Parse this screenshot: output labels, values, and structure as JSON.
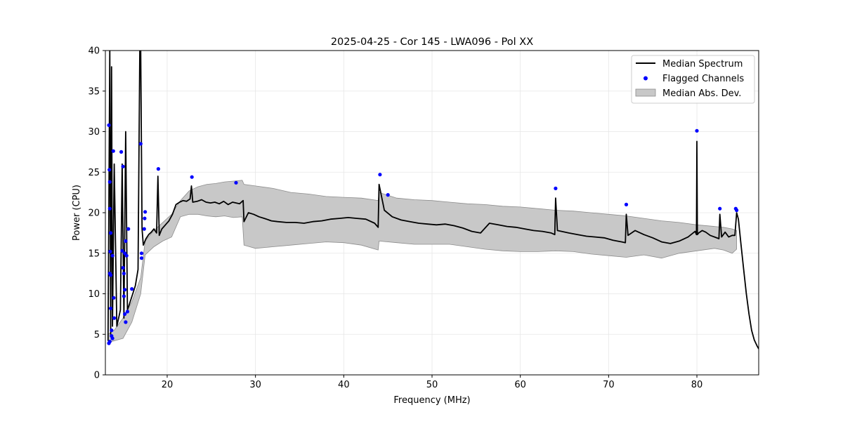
{
  "chart_data": {
    "type": "line",
    "title": "2025-04-25 - Cor 145 - LWA096 - Pol XX",
    "xlabel": "Frequency (MHz)",
    "ylabel": "Power (CPU)",
    "xlim": [
      13.0,
      87.0
    ],
    "ylim": [
      0,
      40
    ],
    "xticks": [
      20,
      30,
      40,
      50,
      60,
      70,
      80
    ],
    "yticks": [
      0,
      5,
      10,
      15,
      20,
      25,
      30,
      35,
      40
    ],
    "grid": true,
    "legend_position": "top-right",
    "legend": [
      "Median Spectrum",
      "Flagged Channels",
      "Median Abs. Dev."
    ],
    "colors": {
      "median": "#000000",
      "flagged": "#0000ff",
      "mad_fill": "#c8c8c8",
      "mad_edge": "#8c8c8c"
    },
    "series": [
      {
        "name": "Median Spectrum",
        "x": [
          13.3,
          13.5,
          13.6,
          13.7,
          13.8,
          14.0,
          14.3,
          14.7,
          14.9,
          15.1,
          15.3,
          15.5,
          15.8,
          16.1,
          16.4,
          16.7,
          16.9,
          17.0,
          17.15,
          17.3,
          17.6,
          17.9,
          18.2,
          18.5,
          18.8,
          18.95,
          19.1,
          19.4,
          19.8,
          20.2,
          20.6,
          21.0,
          21.4,
          21.8,
          22.2,
          22.6,
          22.75,
          22.9,
          23.4,
          23.9,
          24.4,
          24.9,
          25.4,
          25.9,
          26.4,
          26.9,
          27.4,
          27.8,
          28.2,
          28.6,
          28.7,
          29.2,
          29.8,
          30.4,
          31.0,
          31.8,
          32.5,
          33.5,
          34.5,
          35.5,
          36.5,
          37.5,
          38.5,
          39.5,
          40.5,
          41.5,
          42.5,
          43.5,
          43.9,
          44.0,
          44.6,
          45.5,
          46.5,
          47.5,
          48.5,
          49.5,
          50.5,
          51.5,
          52.5,
          53.5,
          54.5,
          55.5,
          56.5,
          57.5,
          58.5,
          59.5,
          60.5,
          61.5,
          62.5,
          63.5,
          63.9,
          64.0,
          64.2,
          65.5,
          66.5,
          67.5,
          68.5,
          69.5,
          70.5,
          71.5,
          71.9,
          72.0,
          72.2,
          73.0,
          74.0,
          75.0,
          76.0,
          77.0,
          78.0,
          79.0,
          79.8,
          79.95,
          80.0,
          80.05,
          80.2,
          80.6,
          81.0,
          81.5,
          82.0,
          82.5,
          82.6,
          82.8,
          83.2,
          83.6,
          84.0,
          84.3,
          84.5,
          84.7,
          85.0,
          85.3,
          85.6,
          85.9,
          86.2,
          86.5,
          86.8,
          87.0
        ],
        "values": [
          4.2,
          40,
          5,
          38,
          6,
          26,
          6,
          8,
          26,
          7,
          30,
          8,
          9,
          10,
          11,
          13,
          40,
          40,
          18,
          16,
          16.8,
          17.3,
          17.6,
          18,
          17.5,
          24.5,
          17.2,
          18,
          18.5,
          19,
          19.8,
          21,
          21.3,
          21.5,
          21.4,
          21.7,
          23.3,
          21.3,
          21.4,
          21.6,
          21.3,
          21.2,
          21.3,
          21.1,
          21.4,
          21,
          21.3,
          21.2,
          21.1,
          21.5,
          18.9,
          20.0,
          19.8,
          19.5,
          19.3,
          19,
          18.9,
          18.8,
          18.8,
          18.7,
          18.9,
          19,
          19.2,
          19.3,
          19.4,
          19.3,
          19.2,
          18.7,
          18.2,
          23.5,
          20.3,
          19.5,
          19.1,
          18.9,
          18.7,
          18.6,
          18.5,
          18.6,
          18.4,
          18.1,
          17.7,
          17.5,
          18.7,
          18.5,
          18.3,
          18.2,
          18.0,
          17.8,
          17.7,
          17.5,
          17.3,
          21.8,
          17.8,
          17.5,
          17.3,
          17.1,
          17.0,
          16.9,
          16.6,
          16.4,
          16.3,
          19.8,
          17.2,
          17.8,
          17.3,
          16.9,
          16.4,
          16.2,
          16.5,
          17.0,
          17.7,
          17.3,
          28.8,
          17.3,
          17.5,
          17.8,
          17.6,
          17.2,
          17.0,
          16.8,
          19.8,
          17.0,
          17.6,
          17.0,
          17.2,
          17.2,
          20.0,
          19.2,
          16.0,
          13.0,
          10.0,
          7.5,
          5.5,
          4.3,
          3.6,
          3.2
        ]
      },
      {
        "name": "Median Abs. Dev.",
        "x": [
          13.3,
          14.0,
          15.0,
          16.0,
          17.0,
          17.5,
          18.5,
          19.5,
          20.5,
          21.5,
          22.5,
          23.5,
          24.5,
          25.5,
          26.5,
          27.5,
          28.5,
          28.7,
          30.0,
          32.0,
          34.0,
          36.0,
          38.0,
          40.0,
          42.0,
          43.9,
          44.0,
          46.0,
          48.0,
          50.0,
          52.0,
          54.0,
          56.0,
          58.0,
          60.0,
          62.0,
          64.0,
          66.0,
          68.0,
          70.0,
          72.0,
          74.0,
          76.0,
          78.0,
          80.0,
          82.0,
          83.0,
          84.0,
          84.5
        ],
        "upper": [
          5,
          5.5,
          7,
          9,
          12,
          16.5,
          17.8,
          18.8,
          19.8,
          21.5,
          22.7,
          23.2,
          23.5,
          23.6,
          23.8,
          23.9,
          24.0,
          23.5,
          23.3,
          23.0,
          22.5,
          22.3,
          22.0,
          21.9,
          21.8,
          21.5,
          22.5,
          21.8,
          21.6,
          21.5,
          21.3,
          21.1,
          21.0,
          20.8,
          20.7,
          20.5,
          20.3,
          20.2,
          20.0,
          19.8,
          19.6,
          19.3,
          19.0,
          18.8,
          18.5,
          18.3,
          18.2,
          18.0,
          17.8
        ],
        "lower": [
          4,
          4.2,
          4.5,
          6.5,
          10,
          14.8,
          15.8,
          16.5,
          17.0,
          19.5,
          19.8,
          19.8,
          19.6,
          19.5,
          19.6,
          19.4,
          19.5,
          16.0,
          15.6,
          15.8,
          16.0,
          16.2,
          16.4,
          16.3,
          16.0,
          15.4,
          16.5,
          16.3,
          16.1,
          16.1,
          16.1,
          15.8,
          15.5,
          15.3,
          15.2,
          15.2,
          15.3,
          15.2,
          14.9,
          14.7,
          14.5,
          14.8,
          14.4,
          15.0,
          15.3,
          15.6,
          15.4,
          15.0,
          15.5
        ]
      },
      {
        "name": "Flagged Channels",
        "points": [
          [
            13.4,
            30.8
          ],
          [
            13.45,
            25.3
          ],
          [
            13.5,
            23.8
          ],
          [
            13.5,
            20.5
          ],
          [
            13.6,
            17.5
          ],
          [
            13.55,
            15.2
          ],
          [
            13.5,
            12.5
          ],
          [
            13.6,
            12.3
          ],
          [
            13.6,
            8.2
          ],
          [
            13.7,
            5.5
          ],
          [
            13.7,
            4.8
          ],
          [
            13.5,
            4.1
          ],
          [
            13.4,
            3.9
          ],
          [
            13.8,
            4.5
          ],
          [
            13.8,
            14.7
          ],
          [
            13.9,
            27.6
          ],
          [
            13.95,
            9.5
          ],
          [
            14.0,
            7.0
          ],
          [
            14.8,
            27.5
          ],
          [
            15.0,
            25.7
          ],
          [
            14.9,
            15.3
          ],
          [
            15.0,
            13.2
          ],
          [
            15.1,
            12.5
          ],
          [
            15.1,
            9.7
          ],
          [
            15.2,
            7.5
          ],
          [
            15.3,
            16.5
          ],
          [
            15.2,
            15.0
          ],
          [
            15.2,
            10.5
          ],
          [
            15.4,
            14.7
          ],
          [
            15.6,
            18.0
          ],
          [
            15.5,
            7.8
          ],
          [
            15.3,
            6.5
          ],
          [
            16.0,
            10.6
          ],
          [
            17.0,
            28.5
          ],
          [
            17.1,
            15.0
          ],
          [
            17.1,
            14.4
          ],
          [
            17.4,
            18.0
          ],
          [
            17.45,
            19.3
          ],
          [
            17.5,
            20.1
          ],
          [
            19.0,
            25.4
          ],
          [
            22.8,
            24.4
          ],
          [
            27.8,
            23.7
          ],
          [
            44.1,
            24.7
          ],
          [
            45.0,
            22.2
          ],
          [
            64.0,
            23.0
          ],
          [
            72.0,
            21.0
          ],
          [
            80.0,
            30.1
          ],
          [
            82.6,
            20.5
          ],
          [
            84.4,
            20.5
          ],
          [
            84.5,
            20.3
          ]
        ]
      }
    ]
  }
}
